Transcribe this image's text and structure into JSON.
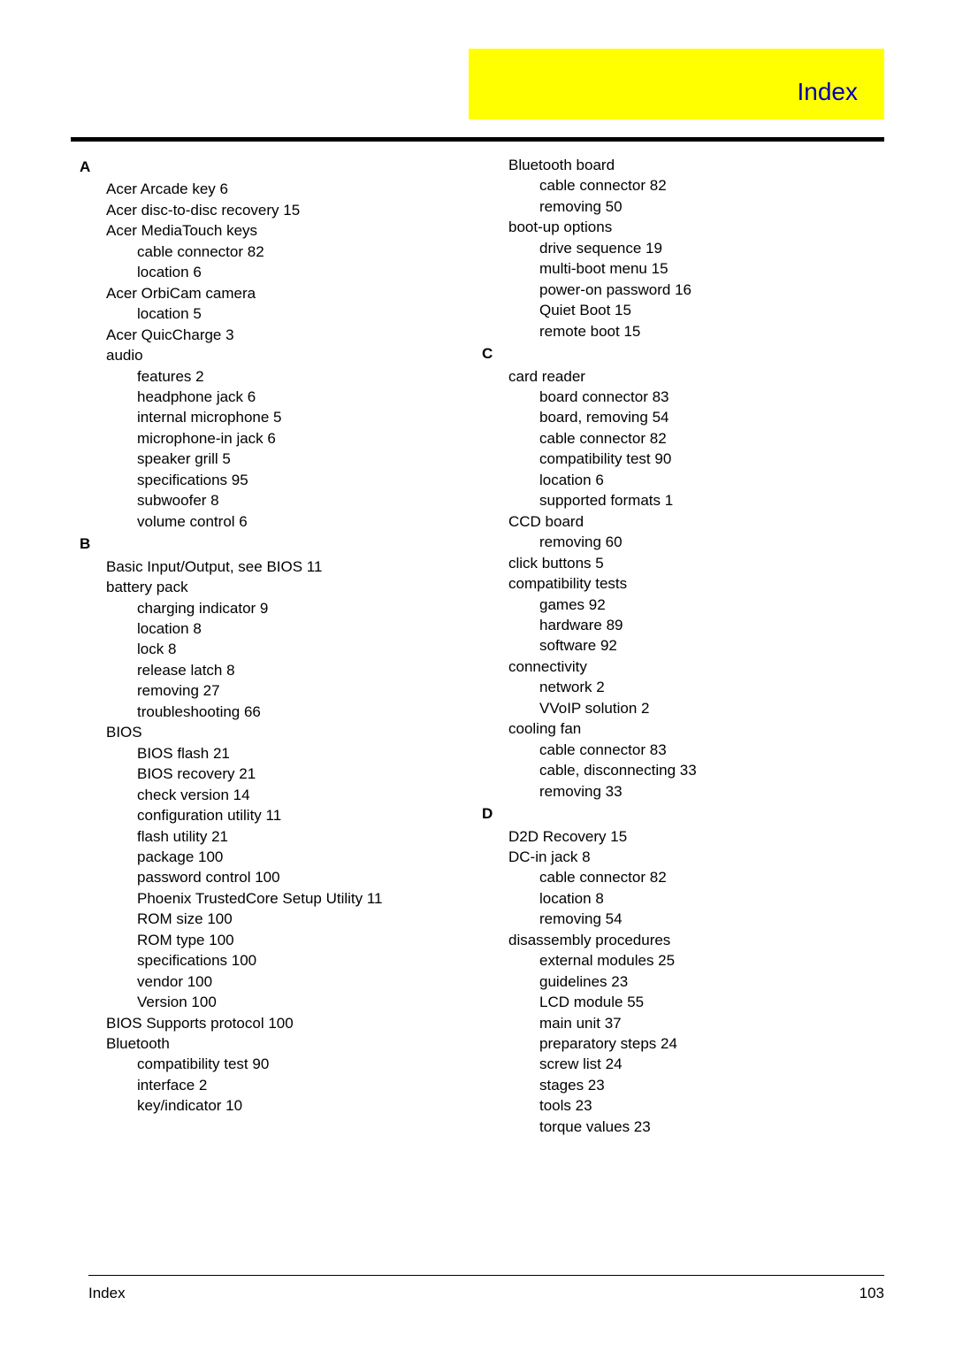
{
  "header": {
    "title": "Index"
  },
  "footer": {
    "label": "Index",
    "page": "103"
  },
  "col1": [
    {
      "type": "letter",
      "text": "A"
    },
    {
      "type": "e1",
      "text": "Acer Arcade key 6"
    },
    {
      "type": "e1",
      "text": "Acer disc-to-disc recovery 15"
    },
    {
      "type": "e1",
      "text": "Acer MediaTouch keys"
    },
    {
      "type": "e2",
      "text": "cable connector 82"
    },
    {
      "type": "e2",
      "text": "location 6"
    },
    {
      "type": "e1",
      "text": "Acer OrbiCam camera"
    },
    {
      "type": "e2",
      "text": "location 5"
    },
    {
      "type": "e1",
      "text": "Acer QuicCharge 3"
    },
    {
      "type": "e1",
      "text": "audio"
    },
    {
      "type": "e2",
      "text": "features 2"
    },
    {
      "type": "e2",
      "text": "headphone jack 6"
    },
    {
      "type": "e2",
      "text": "internal microphone 5"
    },
    {
      "type": "e2",
      "text": "microphone-in jack 6"
    },
    {
      "type": "e2",
      "text": "speaker grill 5"
    },
    {
      "type": "e2",
      "text": "specifications 95"
    },
    {
      "type": "e2",
      "text": "subwoofer 8"
    },
    {
      "type": "e2",
      "text": "volume control 6"
    },
    {
      "type": "letter",
      "text": "B"
    },
    {
      "type": "e1",
      "text": "Basic Input/Output, see BIOS 11"
    },
    {
      "type": "e1",
      "text": "battery pack"
    },
    {
      "type": "e2",
      "text": "charging indicator 9"
    },
    {
      "type": "e2",
      "text": "location 8"
    },
    {
      "type": "e2",
      "text": "lock 8"
    },
    {
      "type": "e2",
      "text": "release latch 8"
    },
    {
      "type": "e2",
      "text": "removing 27"
    },
    {
      "type": "e2",
      "text": "troubleshooting 66"
    },
    {
      "type": "e1",
      "text": "BIOS"
    },
    {
      "type": "e2",
      "text": "BIOS flash 21"
    },
    {
      "type": "e2",
      "text": "BIOS recovery 21"
    },
    {
      "type": "e2",
      "text": "check version 14"
    },
    {
      "type": "e2",
      "text": "configuration utility 11"
    },
    {
      "type": "e2",
      "text": "flash utility 21"
    },
    {
      "type": "e2",
      "text": "package 100"
    },
    {
      "type": "e2",
      "text": "password control 100"
    },
    {
      "type": "e2",
      "text": "Phoenix TrustedCore Setup Utility 11"
    },
    {
      "type": "e2",
      "text": "ROM size 100"
    },
    {
      "type": "e2",
      "text": "ROM type 100"
    },
    {
      "type": "e2",
      "text": "specifications 100"
    },
    {
      "type": "e2",
      "text": "vendor 100"
    },
    {
      "type": "e2",
      "text": "Version 100"
    },
    {
      "type": "e1",
      "text": "BIOS Supports protocol 100"
    },
    {
      "type": "e1",
      "text": "Bluetooth"
    },
    {
      "type": "e2",
      "text": "compatibility test 90"
    },
    {
      "type": "e2",
      "text": "interface 2"
    },
    {
      "type": "e2",
      "text": "key/indicator 10"
    }
  ],
  "col2": [
    {
      "type": "e1",
      "text": "Bluetooth board"
    },
    {
      "type": "e2",
      "text": "cable connector 82"
    },
    {
      "type": "e2",
      "text": "removing 50"
    },
    {
      "type": "e1",
      "text": "boot-up options"
    },
    {
      "type": "e2",
      "text": "drive sequence 19"
    },
    {
      "type": "e2",
      "text": "multi-boot menu 15"
    },
    {
      "type": "e2",
      "text": "power-on password 16"
    },
    {
      "type": "e2",
      "text": "Quiet Boot 15"
    },
    {
      "type": "e2",
      "text": "remote boot 15"
    },
    {
      "type": "letter",
      "text": "C"
    },
    {
      "type": "e1",
      "text": "card reader"
    },
    {
      "type": "e2",
      "text": "board connector 83"
    },
    {
      "type": "e2",
      "text": "board, removing 54"
    },
    {
      "type": "e2",
      "text": "cable connector 82"
    },
    {
      "type": "e2",
      "text": "compatibility test 90"
    },
    {
      "type": "e2",
      "text": "location 6"
    },
    {
      "type": "e2",
      "text": "supported formats 1"
    },
    {
      "type": "e1",
      "text": "CCD board"
    },
    {
      "type": "e2",
      "text": "removing 60"
    },
    {
      "type": "e1",
      "text": "click buttons 5"
    },
    {
      "type": "e1",
      "text": "compatibility tests"
    },
    {
      "type": "e2",
      "text": "games 92"
    },
    {
      "type": "e2",
      "text": "hardware 89"
    },
    {
      "type": "e2",
      "text": "software 92"
    },
    {
      "type": "e1",
      "text": "connectivity"
    },
    {
      "type": "e2",
      "text": "network 2"
    },
    {
      "type": "e2",
      "text": "VVoIP solution 2"
    },
    {
      "type": "e1",
      "text": "cooling fan"
    },
    {
      "type": "e2",
      "text": "cable connector 83"
    },
    {
      "type": "e2",
      "text": "cable, disconnecting 33"
    },
    {
      "type": "e2",
      "text": "removing 33"
    },
    {
      "type": "letter",
      "text": "D"
    },
    {
      "type": "e1",
      "text": "D2D Recovery 15"
    },
    {
      "type": "e1",
      "text": "DC-in jack 8"
    },
    {
      "type": "e2",
      "text": "cable connector 82"
    },
    {
      "type": "e2",
      "text": "location 8"
    },
    {
      "type": "e2",
      "text": "removing 54"
    },
    {
      "type": "e1",
      "text": "disassembly procedures"
    },
    {
      "type": "e2",
      "text": "external modules 25"
    },
    {
      "type": "e2",
      "text": "guidelines 23"
    },
    {
      "type": "e2",
      "text": "LCD module 55"
    },
    {
      "type": "e2",
      "text": "main unit 37"
    },
    {
      "type": "e2",
      "text": "preparatory steps 24"
    },
    {
      "type": "e2",
      "text": "screw list 24"
    },
    {
      "type": "e2",
      "text": "stages 23"
    },
    {
      "type": "e2",
      "text": "tools 23"
    },
    {
      "type": "e2",
      "text": "torque values 23"
    }
  ]
}
